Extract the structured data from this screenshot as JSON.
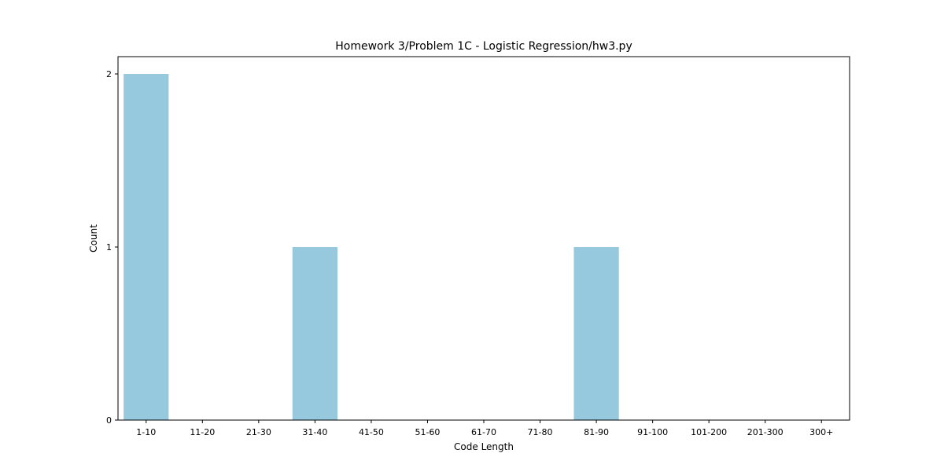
{
  "chart_data": {
    "type": "bar",
    "title": "Homework 3/Problem 1C - Logistic Regression/hw3.py",
    "xlabel": "Code Length",
    "ylabel": "Count",
    "categories": [
      "1-10",
      "11-20",
      "21-30",
      "31-40",
      "41-50",
      "51-60",
      "61-70",
      "71-80",
      "81-90",
      "91-100",
      "101-200",
      "201-300",
      "300+"
    ],
    "values": [
      2,
      0,
      0,
      1,
      0,
      0,
      0,
      0,
      1,
      0,
      0,
      0,
      0
    ],
    "ylim": [
      0,
      2.1
    ],
    "yticks": [
      "0",
      "1",
      "2"
    ],
    "bar_color": "#96c9de",
    "grid": false,
    "legend": "none"
  }
}
